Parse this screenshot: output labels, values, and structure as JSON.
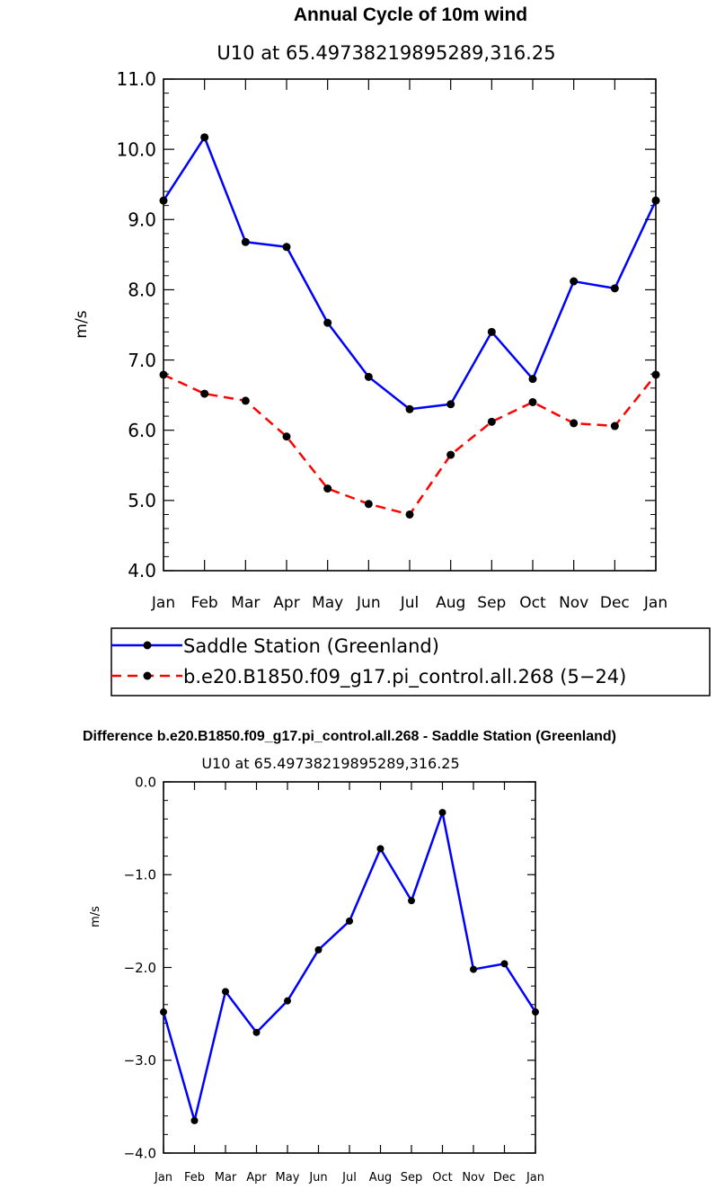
{
  "chart_data": [
    {
      "type": "line",
      "title": "Annual Cycle of 10m wind",
      "subtitle": "U10  at  65.49738219895289,316.25",
      "ylabel": "m/s",
      "xlabel": "",
      "categories": [
        "Jan",
        "Feb",
        "Mar",
        "Apr",
        "May",
        "Jun",
        "Jul",
        "Aug",
        "Sep",
        "Oct",
        "Nov",
        "Dec",
        "Jan"
      ],
      "ylim": [
        4.0,
        11.0
      ],
      "yticks": [
        "4.0",
        "5.0",
        "6.0",
        "7.0",
        "8.0",
        "9.0",
        "10.0",
        "11.0"
      ],
      "series": [
        {
          "name": "Saddle Station (Greenland)",
          "color": "#0000ff",
          "dash": "solid",
          "values": [
            9.27,
            10.17,
            8.68,
            8.61,
            7.53,
            6.76,
            6.3,
            6.37,
            7.4,
            6.73,
            8.12,
            8.02,
            9.27
          ]
        },
        {
          "name": "b.e20.B1850.f09_g17.pi_control.all.268 (5−24)",
          "color": "#ff0000",
          "dash": "dashed",
          "values": [
            6.79,
            6.52,
            6.42,
            5.91,
            5.17,
            4.95,
            4.8,
            5.65,
            6.12,
            6.4,
            6.1,
            6.06,
            6.79
          ]
        }
      ],
      "legend_position": "below"
    },
    {
      "type": "line",
      "title": "Difference b.e20.B1850.f09_g17.pi_control.all.268 - Saddle Station (Greenland)",
      "subtitle": "U10  at  65.49738219895289,316.25",
      "ylabel": "m/s",
      "xlabel": "",
      "categories": [
        "Jan",
        "Feb",
        "Mar",
        "Apr",
        "May",
        "Jun",
        "Jul",
        "Aug",
        "Sep",
        "Oct",
        "Nov",
        "Dec",
        "Jan"
      ],
      "ylim": [
        -4.0,
        0.0
      ],
      "yticks": [
        "−4.0",
        "−3.0",
        "−2.0",
        "−1.0",
        "0.0"
      ],
      "series": [
        {
          "color": "#0000ff",
          "dash": "solid",
          "values": [
            -2.48,
            -3.65,
            -2.26,
            -2.7,
            -2.36,
            -1.81,
            -1.5,
            -0.72,
            -1.28,
            -0.33,
            -2.02,
            -1.96,
            -2.48
          ]
        }
      ]
    }
  ]
}
